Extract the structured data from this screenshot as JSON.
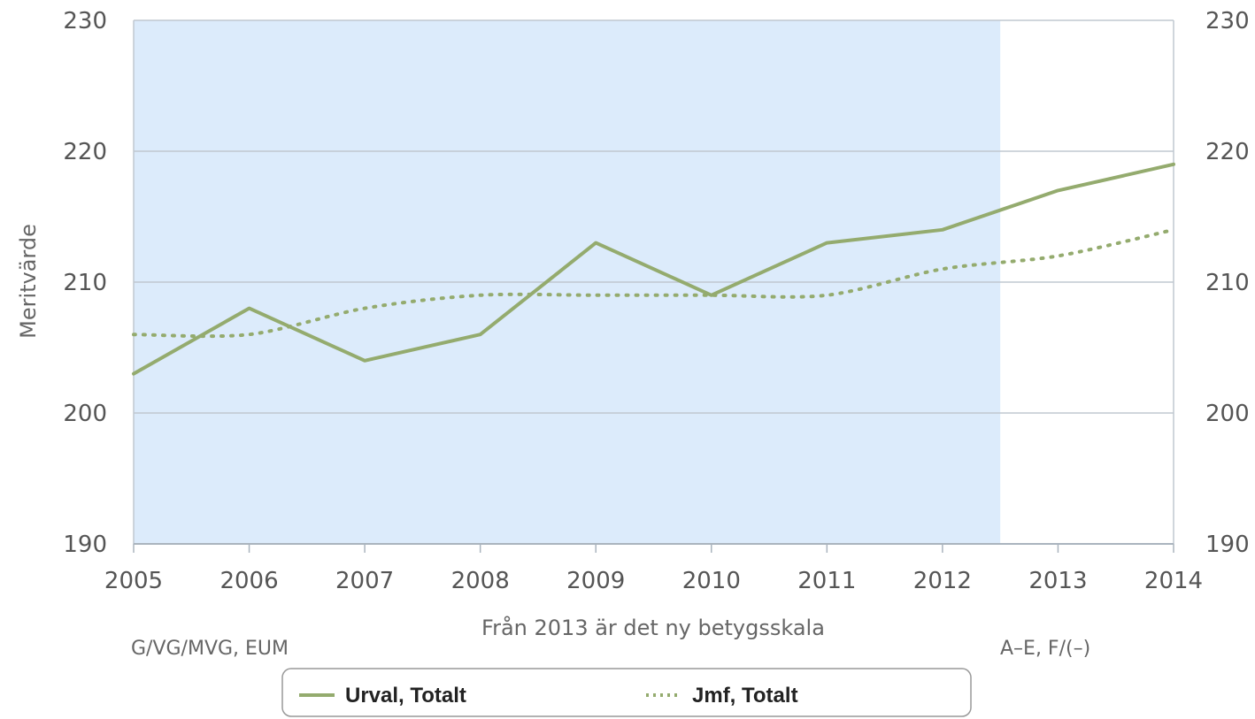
{
  "chart_data": {
    "type": "line",
    "xlabel": "Från 2013 är det ny betygsskala",
    "ylabel": "Meritvärde",
    "x": [
      2005,
      2006,
      2007,
      2008,
      2009,
      2010,
      2011,
      2012,
      2013,
      2014
    ],
    "xlim": [
      2005,
      2014
    ],
    "ylim": [
      190,
      230
    ],
    "yticks": [
      190,
      200,
      210,
      220,
      230
    ],
    "grid": true,
    "secondary_y_ticks": true,
    "highlight_band": {
      "from": 2005,
      "to": 2012.5,
      "color": "#dcebfb"
    },
    "notes": {
      "left": "G/VG/MVG, EUM",
      "right": "A–E, F/(–)"
    },
    "series": [
      {
        "name": "Urval, Totalt",
        "style": "solid",
        "color": "#94ab6e",
        "values": [
          203,
          208,
          204,
          206,
          213,
          209,
          213,
          214,
          217,
          219
        ]
      },
      {
        "name": "Jmf, Totalt",
        "style": "dotted",
        "color": "#94ab6e",
        "values": [
          206,
          206,
          208,
          209,
          209,
          209,
          209,
          211,
          212,
          214
        ]
      }
    ],
    "legend": {
      "placement": "bottom-center"
    }
  }
}
